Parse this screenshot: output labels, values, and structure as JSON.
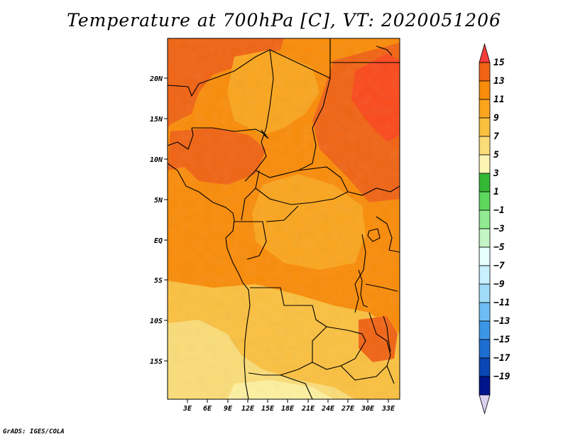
{
  "title": "Temperature at 700hPa [C], VT: 2020051206",
  "credit": "GrADS: IGES/COLA",
  "map": {
    "lat_labels": [
      "20N",
      "15N",
      "10N",
      "5N",
      "EQ",
      "5S",
      "10S",
      "15S"
    ],
    "lon_labels": [
      "3E",
      "6E",
      "9E",
      "12E",
      "15E",
      "18E",
      "21E",
      "24E",
      "27E",
      "30E",
      "33E"
    ]
  },
  "colorbar": {
    "labels": [
      "15",
      "13",
      "11",
      "9",
      "7",
      "5",
      "3",
      "1",
      "−1",
      "−3",
      "−5",
      "−7",
      "−9",
      "−11",
      "−13",
      "−15",
      "−17",
      "−19"
    ],
    "colors": [
      "#fa3c3c",
      "#f06414",
      "#f98c0a",
      "#faa51e",
      "#fac040",
      "#fadc78",
      "#fdf5b4",
      "#35b835",
      "#5ed75e",
      "#91eb91",
      "#c4f5c4",
      "#e6ffff",
      "#c8f0ff",
      "#a0dcfa",
      "#6ebef5",
      "#3c96e6",
      "#1e6ed2",
      "#0a46b4",
      "#00148c",
      "#dcd2f0"
    ]
  }
}
